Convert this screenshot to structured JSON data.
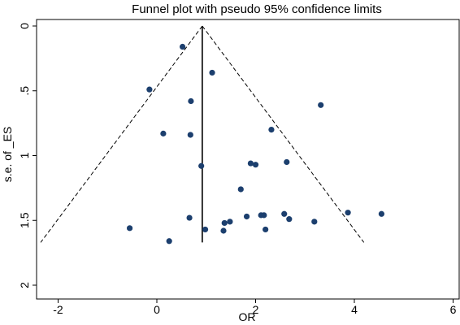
{
  "chart_data": {
    "type": "scatter",
    "title": "Funnel plot with pseudo 95% confidence limits",
    "xlabel": "OR",
    "ylabel": "s.e. of _ES",
    "xlim": [
      -2.5,
      6.0
    ],
    "ylim": [
      0,
      2.05
    ],
    "y_reversed": true,
    "grid": false,
    "legend": "none",
    "x_ticks": [
      -2,
      0,
      2,
      4,
      6
    ],
    "x_tick_labels": [
      "-2",
      "0",
      "2",
      "4",
      "6"
    ],
    "y_ticks": [
      0,
      0.5,
      1,
      1.5,
      2
    ],
    "y_tick_labels": [
      "0",
      ".5",
      "1",
      "1.5",
      "2"
    ],
    "pooled_estimate": 0.92,
    "funnel_max_se": 1.67,
    "marker_color": "#1c3f6e",
    "points": [
      {
        "x": 0.52,
        "y": 0.16
      },
      {
        "x": 1.12,
        "y": 0.36
      },
      {
        "x": -0.15,
        "y": 0.49
      },
      {
        "x": 0.69,
        "y": 0.58
      },
      {
        "x": 3.32,
        "y": 0.61
      },
      {
        "x": 0.13,
        "y": 0.83
      },
      {
        "x": 0.68,
        "y": 0.84
      },
      {
        "x": 2.32,
        "y": 0.8
      },
      {
        "x": 0.9,
        "y": 1.08
      },
      {
        "x": 1.9,
        "y": 1.06
      },
      {
        "x": 2.0,
        "y": 1.07
      },
      {
        "x": 2.63,
        "y": 1.05
      },
      {
        "x": 1.7,
        "y": 1.26
      },
      {
        "x": 0.66,
        "y": 1.48
      },
      {
        "x": 1.82,
        "y": 1.47
      },
      {
        "x": 2.11,
        "y": 1.46
      },
      {
        "x": 2.17,
        "y": 1.46
      },
      {
        "x": 2.58,
        "y": 1.45
      },
      {
        "x": 2.68,
        "y": 1.49
      },
      {
        "x": 3.87,
        "y": 1.44
      },
      {
        "x": 4.55,
        "y": 1.45
      },
      {
        "x": 1.48,
        "y": 1.51
      },
      {
        "x": 1.37,
        "y": 1.52
      },
      {
        "x": 3.19,
        "y": 1.51
      },
      {
        "x": -0.55,
        "y": 1.56
      },
      {
        "x": 0.98,
        "y": 1.57
      },
      {
        "x": 1.35,
        "y": 1.58
      },
      {
        "x": 2.2,
        "y": 1.57
      },
      {
        "x": 0.25,
        "y": 1.66
      }
    ]
  }
}
